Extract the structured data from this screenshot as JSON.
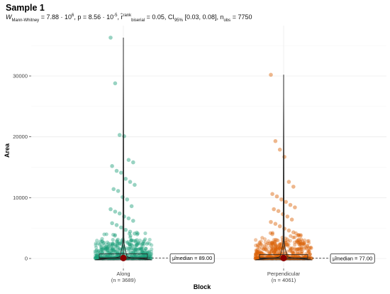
{
  "title": "Sample 1",
  "subtitle": {
    "w": "W",
    "w_sub": "Mann-Whitney",
    "w_eq": " = 7.88 · 10",
    "w_exp": "6",
    "p": ", p = 8.56 · 10",
    "p_exp": "-5",
    "r": ", r̂",
    "r_sup": "rank",
    "r_sub": "biserial",
    "r_val": " = 0.05, CI",
    "ci_sub": "95%",
    "ci_val": " [0.03, 0.08], n",
    "n_sub": "obs",
    "n_val": " = 7750"
  },
  "chart_data": {
    "type": "scatter",
    "subtype": "violin-box-jitter",
    "xlabel": "Block",
    "ylabel": "Area",
    "ylim": [
      -1000,
      37000
    ],
    "yticks": [
      0,
      10000,
      20000,
      30000
    ],
    "grid": true,
    "groups": [
      {
        "name": "Along",
        "n_label": "(n = 3689)",
        "n": 3689,
        "color": "#1b9e77",
        "median": 89,
        "median_label": "μ̂median = 89.00",
        "q3": 750,
        "max": 36300,
        "outliers": [
          36300,
          28800,
          20300,
          20100,
          16200,
          15800,
          15200,
          14400,
          14100,
          13100,
          12600,
          12100,
          11400,
          11100,
          10100,
          9700,
          8600,
          8100,
          7700,
          7400,
          6900,
          6600,
          6200,
          5800,
          5500,
          5100,
          4700,
          4400,
          4100
        ]
      },
      {
        "name": "Perpendicular",
        "n_label": "(n = 4061)",
        "n": 4061,
        "color": "#d95f02",
        "median": 77,
        "median_label": "μ̂median = 77.00",
        "q3": 650,
        "max": 30200,
        "outliers": [
          30200,
          19300,
          17900,
          16700,
          12600,
          11800,
          10600,
          10200,
          9700,
          9300,
          8800,
          8400,
          8100,
          7800,
          7300,
          6900,
          6400,
          6000,
          5700,
          5300,
          4900,
          4600,
          4300,
          4000
        ]
      }
    ]
  }
}
